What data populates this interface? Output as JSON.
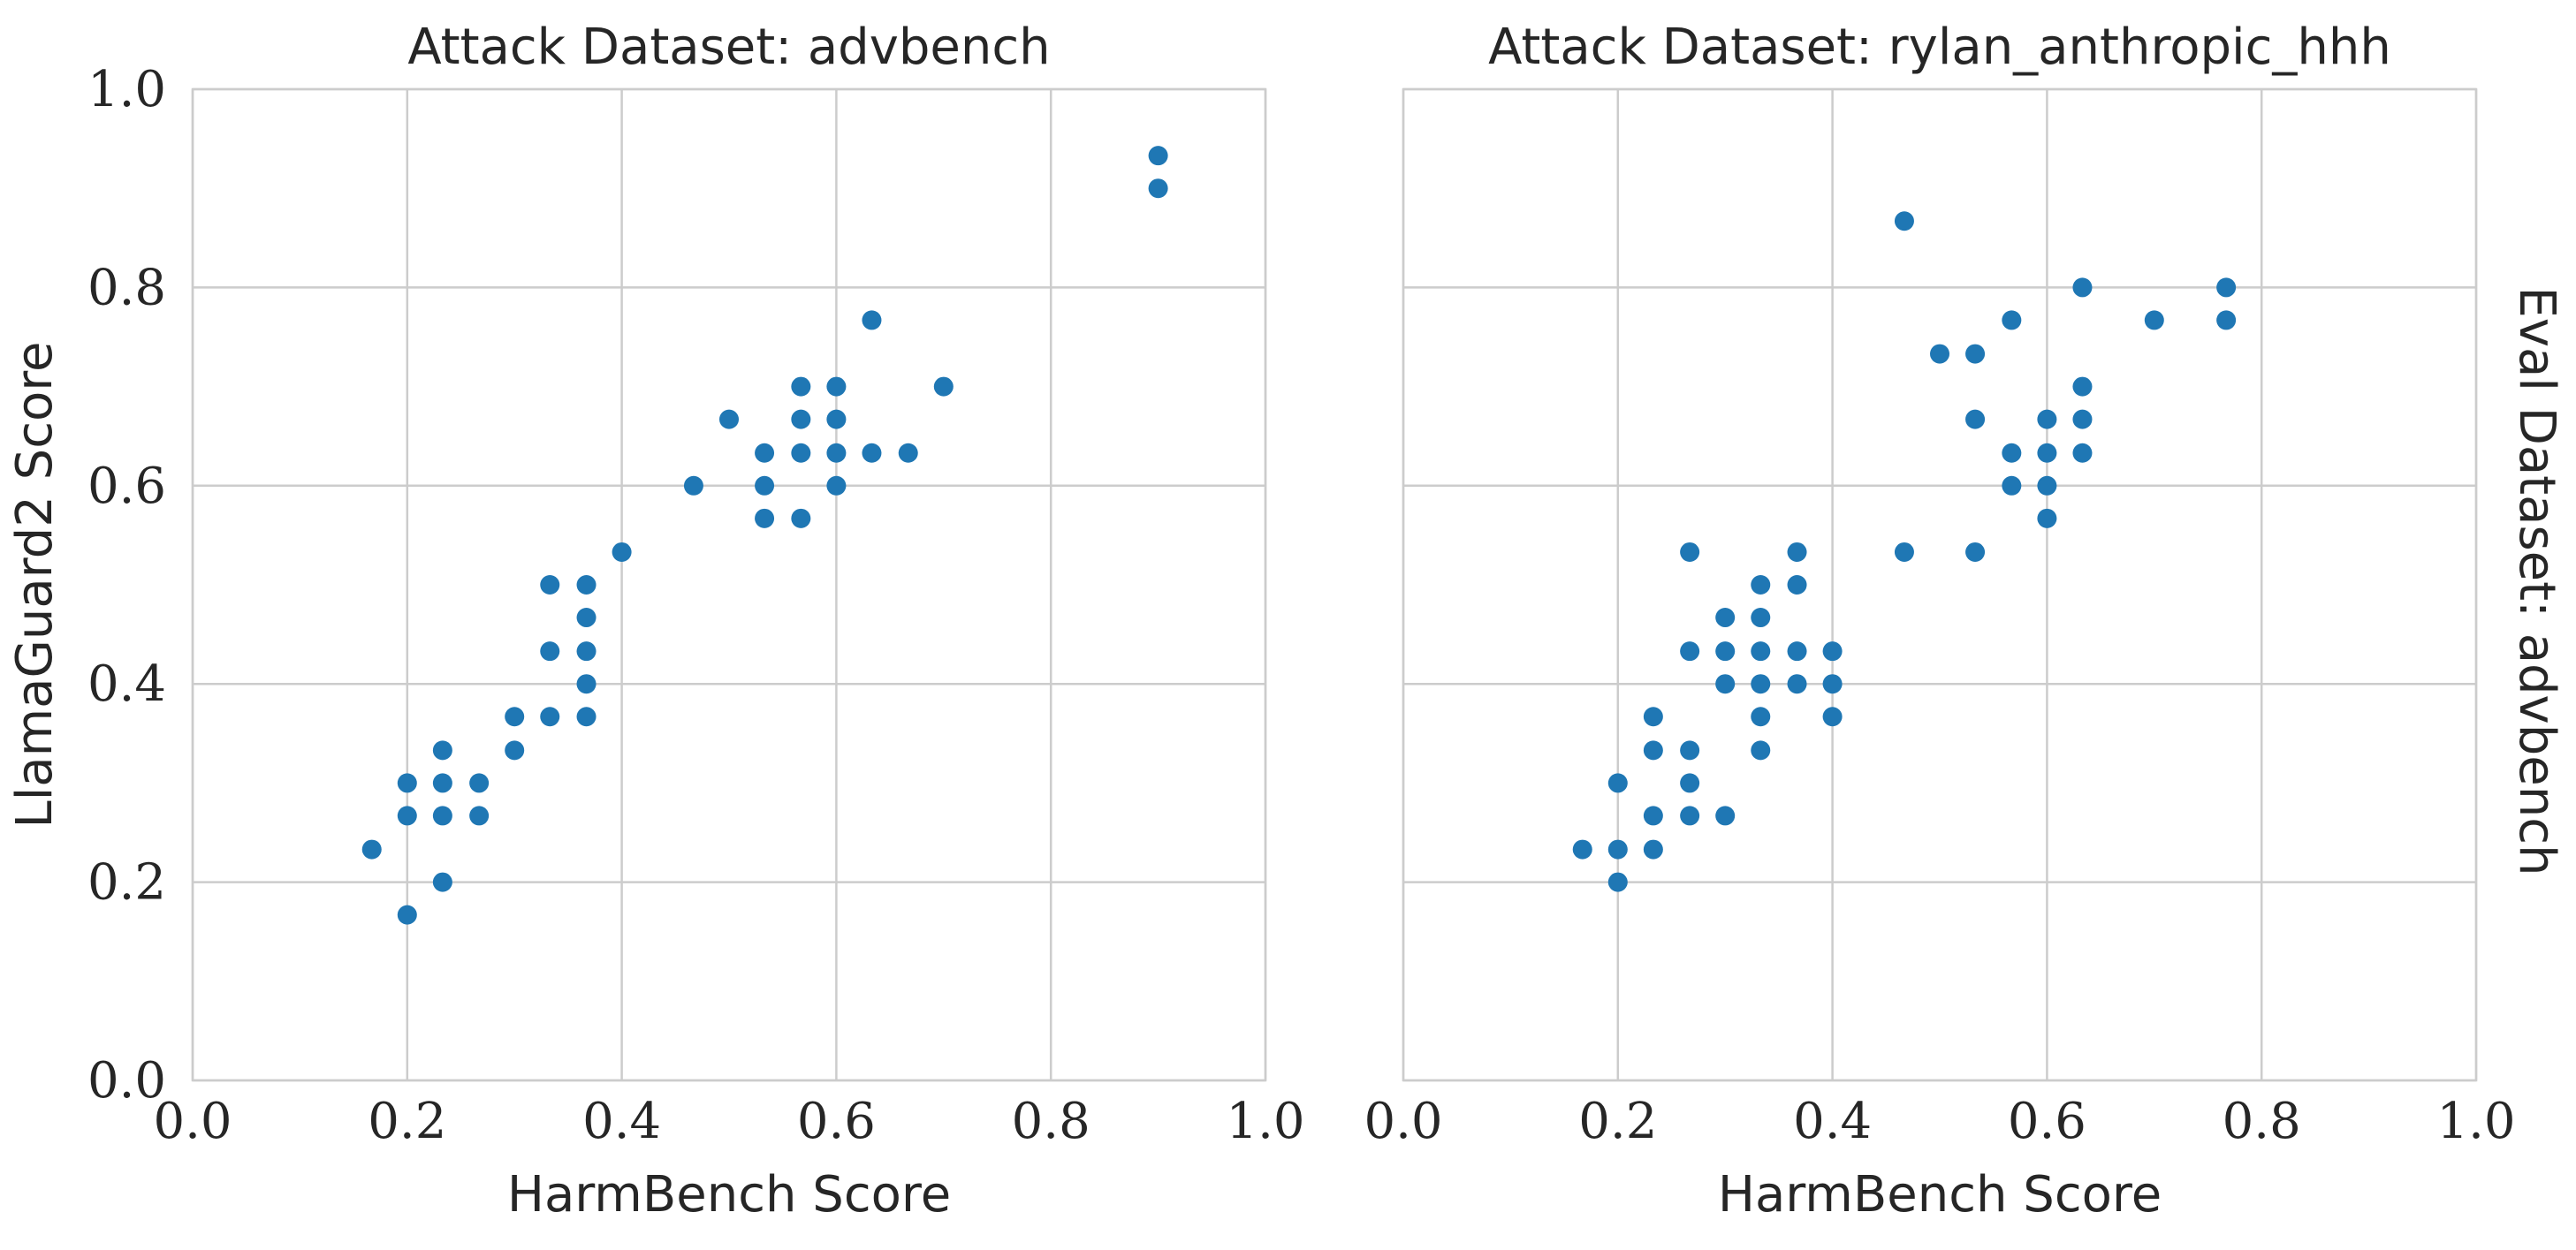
{
  "figure": {
    "row_label": "Eval Dataset: advbench",
    "point_color": "#1f77b4",
    "grid_color": "#cccccc"
  },
  "chart_data": [
    {
      "type": "scatter",
      "title": "Attack Dataset: advbench",
      "xlabel": "HarmBench Score",
      "ylabel": "LlamaGuard2 Score",
      "xlim": [
        0,
        1
      ],
      "ylim": [
        0,
        1
      ],
      "x_ticks": [
        "0.0",
        "0.2",
        "0.4",
        "0.6",
        "0.8",
        "1.0"
      ],
      "y_ticks": [
        "0.0",
        "0.2",
        "0.4",
        "0.6",
        "0.8",
        "1.0"
      ],
      "grid": true,
      "points": [
        [
          0.167,
          0.233
        ],
        [
          0.2,
          0.167
        ],
        [
          0.2,
          0.267
        ],
        [
          0.2,
          0.3
        ],
        [
          0.233,
          0.2
        ],
        [
          0.233,
          0.267
        ],
        [
          0.233,
          0.3
        ],
        [
          0.233,
          0.333
        ],
        [
          0.267,
          0.267
        ],
        [
          0.267,
          0.3
        ],
        [
          0.3,
          0.333
        ],
        [
          0.3,
          0.367
        ],
        [
          0.333,
          0.367
        ],
        [
          0.333,
          0.433
        ],
        [
          0.333,
          0.5
        ],
        [
          0.367,
          0.367
        ],
        [
          0.367,
          0.4
        ],
        [
          0.367,
          0.433
        ],
        [
          0.367,
          0.467
        ],
        [
          0.367,
          0.5
        ],
        [
          0.4,
          0.533
        ],
        [
          0.467,
          0.6
        ],
        [
          0.5,
          0.667
        ],
        [
          0.533,
          0.567
        ],
        [
          0.533,
          0.6
        ],
        [
          0.533,
          0.633
        ],
        [
          0.567,
          0.567
        ],
        [
          0.567,
          0.633
        ],
        [
          0.567,
          0.667
        ],
        [
          0.567,
          0.7
        ],
        [
          0.6,
          0.6
        ],
        [
          0.6,
          0.633
        ],
        [
          0.6,
          0.667
        ],
        [
          0.6,
          0.7
        ],
        [
          0.633,
          0.633
        ],
        [
          0.633,
          0.767
        ],
        [
          0.667,
          0.633
        ],
        [
          0.7,
          0.7
        ],
        [
          0.9,
          0.9
        ],
        [
          0.9,
          0.933
        ]
      ]
    },
    {
      "type": "scatter",
      "title": "Attack Dataset: rylan_anthropic_hhh",
      "xlabel": "HarmBench Score",
      "ylabel": "",
      "xlim": [
        0,
        1
      ],
      "ylim": [
        0,
        1
      ],
      "x_ticks": [
        "0.0",
        "0.2",
        "0.4",
        "0.6",
        "0.8",
        "1.0"
      ],
      "y_ticks": [],
      "grid": true,
      "points": [
        [
          0.167,
          0.233
        ],
        [
          0.2,
          0.2
        ],
        [
          0.2,
          0.233
        ],
        [
          0.2,
          0.3
        ],
        [
          0.233,
          0.233
        ],
        [
          0.233,
          0.267
        ],
        [
          0.233,
          0.333
        ],
        [
          0.233,
          0.367
        ],
        [
          0.267,
          0.267
        ],
        [
          0.267,
          0.3
        ],
        [
          0.267,
          0.333
        ],
        [
          0.267,
          0.433
        ],
        [
          0.267,
          0.533
        ],
        [
          0.3,
          0.267
        ],
        [
          0.3,
          0.4
        ],
        [
          0.3,
          0.433
        ],
        [
          0.3,
          0.467
        ],
        [
          0.333,
          0.333
        ],
        [
          0.333,
          0.367
        ],
        [
          0.333,
          0.4
        ],
        [
          0.333,
          0.433
        ],
        [
          0.333,
          0.467
        ],
        [
          0.333,
          0.5
        ],
        [
          0.367,
          0.4
        ],
        [
          0.367,
          0.433
        ],
        [
          0.367,
          0.5
        ],
        [
          0.367,
          0.533
        ],
        [
          0.4,
          0.367
        ],
        [
          0.4,
          0.4
        ],
        [
          0.4,
          0.433
        ],
        [
          0.467,
          0.533
        ],
        [
          0.467,
          0.867
        ],
        [
          0.5,
          0.733
        ],
        [
          0.533,
          0.533
        ],
        [
          0.533,
          0.667
        ],
        [
          0.533,
          0.733
        ],
        [
          0.567,
          0.6
        ],
        [
          0.567,
          0.633
        ],
        [
          0.567,
          0.767
        ],
        [
          0.6,
          0.567
        ],
        [
          0.6,
          0.6
        ],
        [
          0.6,
          0.633
        ],
        [
          0.6,
          0.667
        ],
        [
          0.633,
          0.633
        ],
        [
          0.633,
          0.667
        ],
        [
          0.633,
          0.7
        ],
        [
          0.633,
          0.8
        ],
        [
          0.7,
          0.767
        ],
        [
          0.767,
          0.767
        ],
        [
          0.767,
          0.8
        ]
      ]
    }
  ]
}
